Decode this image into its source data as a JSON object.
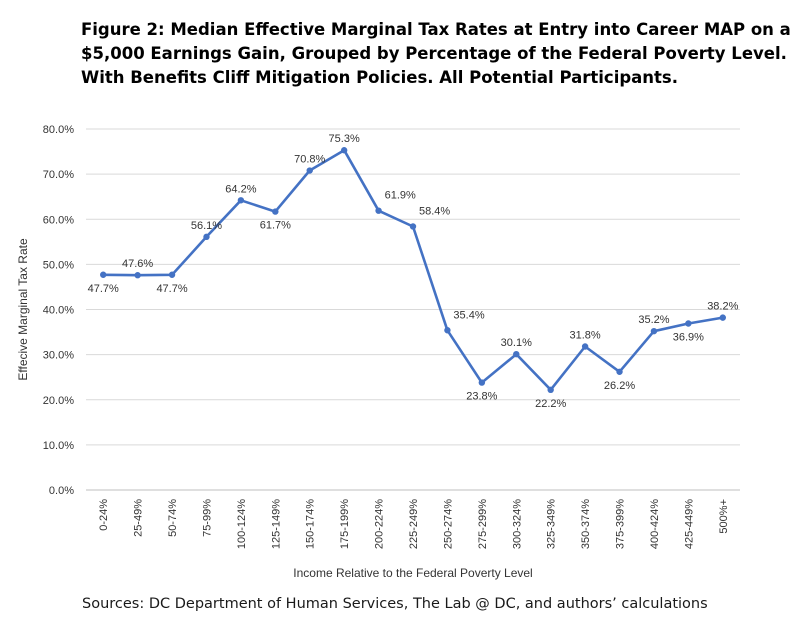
{
  "title_lines": [
    "Figure 2: Median Effective Marginal Tax Rates at Entry into Career MAP on a",
    "$5,000 Earnings Gain, Grouped by Percentage of the Federal Poverty Level.",
    "With Benefits Cliff Mitigation Policies. All Potential Participants."
  ],
  "source": "Sources: DC Department of Human Services, The Lab @ DC, and authors’ calculations",
  "colors": {
    "series": "#4472C4",
    "grid": "#d9d9d9",
    "text": "#333333"
  },
  "chart_data": {
    "type": "line",
    "title": "Figure 2: Median Effective Marginal Tax Rates at Entry into Career MAP on a $5,000 Earnings Gain, Grouped by Percentage of the Federal Poverty Level. With Benefits Cliff Mitigation Policies. All Potential Participants.",
    "xlabel": "Income Relative to the Federal Poverty Level",
    "ylabel": "Effecive Marginal Tax Rate",
    "categories": [
      "0-24%",
      "25-49%",
      "50-74%",
      "75-99%",
      "100-124%",
      "125-149%",
      "150-174%",
      "175-199%",
      "200-224%",
      "225-249%",
      "250-274%",
      "275-299%",
      "300-324%",
      "325-349%",
      "350-374%",
      "375-399%",
      "400-424%",
      "425-449%",
      "500%+"
    ],
    "values": [
      47.7,
      47.6,
      47.7,
      56.1,
      64.2,
      61.7,
      70.8,
      75.3,
      61.9,
      58.4,
      35.4,
      23.8,
      30.1,
      22.2,
      31.8,
      26.2,
      35.2,
      36.9,
      38.2
    ],
    "data_labels": [
      "47.7%",
      "47.6%",
      "47.7%",
      "56.1%",
      "64.2%",
      "61.7%",
      "70.8%",
      "75.3%",
      "61.9%",
      "58.4%",
      "35.4%",
      "23.8%",
      "30.1%",
      "22.2%",
      "31.8%",
      "26.2%",
      "35.2%",
      "36.9%",
      "38.2%"
    ],
    "label_positions": [
      "below",
      "above",
      "below",
      "above",
      "above",
      "below",
      "above",
      "above",
      "right",
      "right",
      "right",
      "below",
      "above",
      "below",
      "above",
      "below",
      "above",
      "below",
      "above"
    ],
    "y_ticks": [
      0,
      10,
      20,
      30,
      40,
      50,
      60,
      70,
      80
    ],
    "y_tick_labels": [
      "0.0%",
      "10.0%",
      "20.0%",
      "30.0%",
      "40.0%",
      "50.0%",
      "60.0%",
      "70.0%",
      "80.0%"
    ],
    "ylim": [
      0,
      80
    ],
    "grid": true,
    "legend": "none"
  }
}
